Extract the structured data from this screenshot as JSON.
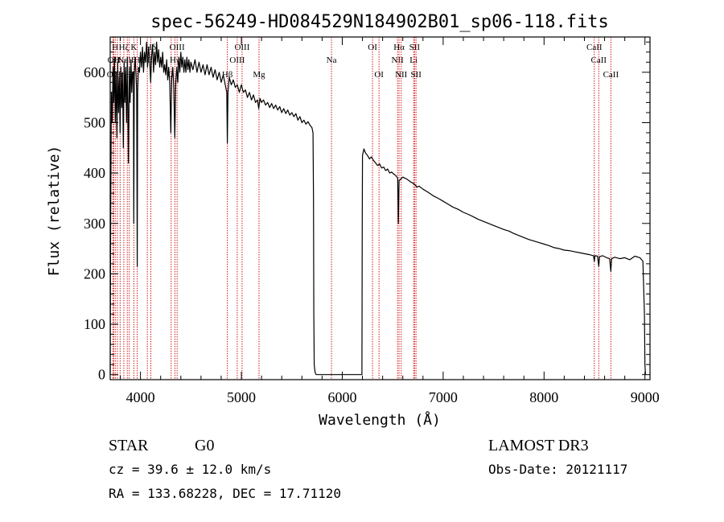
{
  "chart_data": {
    "type": "line",
    "title": "spec-56249-HD084529N184902B01_sp06-118.fits",
    "xlabel": "Wavelength (Å)",
    "ylabel": "Flux (relative)",
    "xlim": [
      3700,
      9050
    ],
    "ylim": [
      -10,
      670
    ],
    "xticks": [
      {
        "value": 4000,
        "label": "4000"
      },
      {
        "value": 5000,
        "label": "5000"
      },
      {
        "value": 6000,
        "label": "6000"
      },
      {
        "value": 7000,
        "label": "7000"
      },
      {
        "value": 8000,
        "label": "8000"
      },
      {
        "value": 9000,
        "label": "9000"
      }
    ],
    "yticks": [
      {
        "value": 0,
        "label": "0"
      },
      {
        "value": 100,
        "label": "100"
      },
      {
        "value": 200,
        "label": "200"
      },
      {
        "value": 300,
        "label": "300"
      },
      {
        "value": 400,
        "label": "400"
      },
      {
        "value": 500,
        "label": "500"
      },
      {
        "value": 600,
        "label": "600"
      }
    ],
    "series": [
      {
        "name": "flux",
        "points": [
          [
            3700,
            0
          ],
          [
            3705,
            320
          ],
          [
            3712,
            560
          ],
          [
            3720,
            500
          ],
          [
            3728,
            610
          ],
          [
            3735,
            540
          ],
          [
            3742,
            630
          ],
          [
            3750,
            500
          ],
          [
            3758,
            600
          ],
          [
            3766,
            470
          ],
          [
            3774,
            620
          ],
          [
            3782,
            520
          ],
          [
            3790,
            590
          ],
          [
            3798,
            480
          ],
          [
            3806,
            610
          ],
          [
            3814,
            530
          ],
          [
            3822,
            600
          ],
          [
            3830,
            450
          ],
          [
            3838,
            620
          ],
          [
            3846,
            540
          ],
          [
            3854,
            610
          ],
          [
            3862,
            500
          ],
          [
            3870,
            630
          ],
          [
            3880,
            420
          ],
          [
            3890,
            610
          ],
          [
            3898,
            540
          ],
          [
            3906,
            625
          ],
          [
            3914,
            560
          ],
          [
            3922,
            600
          ],
          [
            3930,
            600
          ],
          [
            3934,
            300
          ],
          [
            3938,
            590
          ],
          [
            3946,
            630
          ],
          [
            3955,
            600
          ],
          [
            3962,
            560
          ],
          [
            3968,
            215
          ],
          [
            3972,
            560
          ],
          [
            3980,
            610
          ],
          [
            3990,
            600
          ],
          [
            4000,
            640
          ],
          [
            4010,
            610
          ],
          [
            4020,
            650
          ],
          [
            4030,
            600
          ],
          [
            4040,
            640
          ],
          [
            4050,
            620
          ],
          [
            4060,
            660
          ],
          [
            4070,
            610
          ],
          [
            4080,
            650
          ],
          [
            4090,
            630
          ],
          [
            4101,
            580
          ],
          [
            4110,
            630
          ],
          [
            4120,
            655
          ],
          [
            4130,
            600
          ],
          [
            4140,
            640
          ],
          [
            4150,
            615
          ],
          [
            4160,
            660
          ],
          [
            4170,
            620
          ],
          [
            4180,
            645
          ],
          [
            4190,
            610
          ],
          [
            4200,
            630
          ],
          [
            4210,
            610
          ],
          [
            4220,
            640
          ],
          [
            4230,
            600
          ],
          [
            4240,
            615
          ],
          [
            4250,
            595
          ],
          [
            4260,
            625
          ],
          [
            4270,
            585
          ],
          [
            4280,
            610
          ],
          [
            4290,
            580
          ],
          [
            4300,
            480
          ],
          [
            4310,
            590
          ],
          [
            4320,
            610
          ],
          [
            4330,
            570
          ],
          [
            4340,
            470
          ],
          [
            4350,
            580
          ],
          [
            4360,
            610
          ],
          [
            4370,
            580
          ],
          [
            4380,
            630
          ],
          [
            4390,
            600
          ],
          [
            4400,
            640
          ],
          [
            4410,
            610
          ],
          [
            4420,
            630
          ],
          [
            4430,
            600
          ],
          [
            4440,
            625
          ],
          [
            4450,
            600
          ],
          [
            4460,
            630
          ],
          [
            4470,
            605
          ],
          [
            4480,
            625
          ],
          [
            4490,
            600
          ],
          [
            4500,
            620
          ],
          [
            4520,
            605
          ],
          [
            4540,
            625
          ],
          [
            4560,
            600
          ],
          [
            4580,
            620
          ],
          [
            4600,
            600
          ],
          [
            4620,
            615
          ],
          [
            4640,
            595
          ],
          [
            4660,
            615
          ],
          [
            4680,
            595
          ],
          [
            4700,
            610
          ],
          [
            4720,
            590
          ],
          [
            4740,
            605
          ],
          [
            4760,
            585
          ],
          [
            4780,
            600
          ],
          [
            4800,
            580
          ],
          [
            4820,
            595
          ],
          [
            4840,
            575
          ],
          [
            4855,
            560
          ],
          [
            4861,
            460
          ],
          [
            4867,
            560
          ],
          [
            4880,
            590
          ],
          [
            4900,
            575
          ],
          [
            4920,
            585
          ],
          [
            4940,
            570
          ],
          [
            4960,
            575
          ],
          [
            4980,
            560
          ],
          [
            5000,
            575
          ],
          [
            5020,
            560
          ],
          [
            5040,
            565
          ],
          [
            5060,
            550
          ],
          [
            5080,
            560
          ],
          [
            5100,
            545
          ],
          [
            5120,
            555
          ],
          [
            5140,
            540
          ],
          [
            5160,
            545
          ],
          [
            5172,
            528
          ],
          [
            5185,
            548
          ],
          [
            5200,
            540
          ],
          [
            5220,
            545
          ],
          [
            5240,
            535
          ],
          [
            5260,
            540
          ],
          [
            5280,
            530
          ],
          [
            5300,
            538
          ],
          [
            5320,
            528
          ],
          [
            5340,
            535
          ],
          [
            5360,
            525
          ],
          [
            5380,
            532
          ],
          [
            5400,
            520
          ],
          [
            5420,
            528
          ],
          [
            5440,
            518
          ],
          [
            5460,
            525
          ],
          [
            5480,
            515
          ],
          [
            5500,
            520
          ],
          [
            5520,
            512
          ],
          [
            5540,
            518
          ],
          [
            5560,
            505
          ],
          [
            5580,
            512
          ],
          [
            5600,
            500
          ],
          [
            5620,
            505
          ],
          [
            5640,
            497
          ],
          [
            5660,
            502
          ],
          [
            5680,
            495
          ],
          [
            5700,
            490
          ],
          [
            5710,
            480
          ],
          [
            5715,
            350
          ],
          [
            5718,
            120
          ],
          [
            5722,
            20
          ],
          [
            5730,
            5
          ],
          [
            5740,
            0
          ],
          [
            6195,
            0
          ],
          [
            6198,
            300
          ],
          [
            6200,
            435
          ],
          [
            6215,
            448
          ],
          [
            6230,
            440
          ],
          [
            6250,
            435
          ],
          [
            6270,
            428
          ],
          [
            6290,
            432
          ],
          [
            6310,
            425
          ],
          [
            6330,
            420
          ],
          [
            6350,
            415
          ],
          [
            6370,
            418
          ],
          [
            6390,
            410
          ],
          [
            6410,
            412
          ],
          [
            6430,
            405
          ],
          [
            6450,
            408
          ],
          [
            6470,
            400
          ],
          [
            6490,
            402
          ],
          [
            6510,
            398
          ],
          [
            6530,
            395
          ],
          [
            6550,
            390
          ],
          [
            6556,
            300
          ],
          [
            6563,
            385
          ],
          [
            6580,
            388
          ],
          [
            6600,
            392
          ],
          [
            6620,
            390
          ],
          [
            6640,
            388
          ],
          [
            6660,
            385
          ],
          [
            6680,
            382
          ],
          [
            6700,
            380
          ],
          [
            6720,
            377
          ],
          [
            6740,
            372
          ],
          [
            6760,
            374
          ],
          [
            6800,
            368
          ],
          [
            6850,
            362
          ],
          [
            6900,
            355
          ],
          [
            6950,
            350
          ],
          [
            7000,
            344
          ],
          [
            7050,
            338
          ],
          [
            7100,
            332
          ],
          [
            7150,
            328
          ],
          [
            7200,
            322
          ],
          [
            7250,
            318
          ],
          [
            7300,
            313
          ],
          [
            7350,
            308
          ],
          [
            7400,
            304
          ],
          [
            7450,
            300
          ],
          [
            7500,
            296
          ],
          [
            7550,
            292
          ],
          [
            7600,
            288
          ],
          [
            7650,
            285
          ],
          [
            7700,
            280
          ],
          [
            7750,
            276
          ],
          [
            7800,
            272
          ],
          [
            7850,
            268
          ],
          [
            7900,
            265
          ],
          [
            7950,
            262
          ],
          [
            8000,
            259
          ],
          [
            8050,
            256
          ],
          [
            8100,
            252
          ],
          [
            8150,
            250
          ],
          [
            8200,
            247
          ],
          [
            8250,
            246
          ],
          [
            8300,
            244
          ],
          [
            8350,
            242
          ],
          [
            8400,
            240
          ],
          [
            8450,
            238
          ],
          [
            8490,
            236
          ],
          [
            8498,
            225
          ],
          [
            8505,
            236
          ],
          [
            8530,
            235
          ],
          [
            8542,
            215
          ],
          [
            8550,
            234
          ],
          [
            8580,
            236
          ],
          [
            8620,
            232
          ],
          [
            8650,
            230
          ],
          [
            8662,
            205
          ],
          [
            8670,
            230
          ],
          [
            8700,
            233
          ],
          [
            8750,
            230
          ],
          [
            8800,
            232
          ],
          [
            8850,
            228
          ],
          [
            8900,
            235
          ],
          [
            8950,
            232
          ],
          [
            8980,
            225
          ],
          [
            8995,
            120
          ],
          [
            9000,
            20
          ],
          [
            9005,
            0
          ]
        ]
      }
    ],
    "lines": [
      {
        "x": 3727,
        "label": "OII",
        "row": 2
      },
      {
        "x": 3734,
        "label": "OII",
        "row": 1
      },
      {
        "x": 3750,
        "label": "H",
        "row": 0
      },
      {
        "x": 3771,
        "label": "H",
        "row": 1
      },
      {
        "x": 3798,
        "label": "Hη",
        "row": 2
      },
      {
        "x": 3835,
        "label": "Hζ",
        "row": 0
      },
      {
        "x": 3869,
        "label": "NeIII",
        "row": 1
      },
      {
        "x": 3889,
        "label": "Hζ",
        "row": 2
      },
      {
        "x": 3934,
        "label": "K",
        "row": 0
      },
      {
        "x": 3968,
        "label": "H",
        "row": 1
      },
      {
        "x": 4102,
        "label": "Hδ",
        "row": 0
      },
      {
        "x": 4068,
        "label": "SII",
        "row": 1
      },
      {
        "x": 4304,
        "label": "G",
        "row": 2
      },
      {
        "x": 4341,
        "label": "Hγ",
        "row": 1
      },
      {
        "x": 4363,
        "label": "OIII",
        "row": 0
      },
      {
        "x": 4861,
        "label": "Hβ",
        "row": 2
      },
      {
        "x": 4959,
        "label": "OIII",
        "row": 1
      },
      {
        "x": 5007,
        "label": "OIII",
        "row": 0
      },
      {
        "x": 5175,
        "label": "Mg",
        "row": 2
      },
      {
        "x": 5893,
        "label": "Na",
        "row": 1
      },
      {
        "x": 6300,
        "label": "OI",
        "row": 0
      },
      {
        "x": 6364,
        "label": "OI",
        "row": 2
      },
      {
        "x": 6548,
        "label": "NII",
        "row": 1
      },
      {
        "x": 6563,
        "label": "Hα",
        "row": 0
      },
      {
        "x": 6584,
        "label": "NII",
        "row": 2
      },
      {
        "x": 6707,
        "label": "Li",
        "row": 1
      },
      {
        "x": 6717,
        "label": "SII",
        "row": 0
      },
      {
        "x": 6731,
        "label": "SII",
        "row": 2
      },
      {
        "x": 8498,
        "label": "CaII",
        "row": 0
      },
      {
        "x": 8542,
        "label": "CaII",
        "row": 1
      },
      {
        "x": 8662,
        "label": "CaII",
        "row": 2
      }
    ]
  },
  "info": {
    "class_label": "STAR",
    "subclass_label": "G0",
    "survey_label": "LAMOST DR3",
    "cz_text": "cz = 39.6 ± 12.0 km/s",
    "obs_date_text": "Obs-Date: 20121117",
    "coords_text": "RA = 133.68228, DEC =  17.71120"
  },
  "colors": {
    "line_marker": "#cc0000",
    "spectrum": "#000000",
    "axis": "#000000"
  }
}
